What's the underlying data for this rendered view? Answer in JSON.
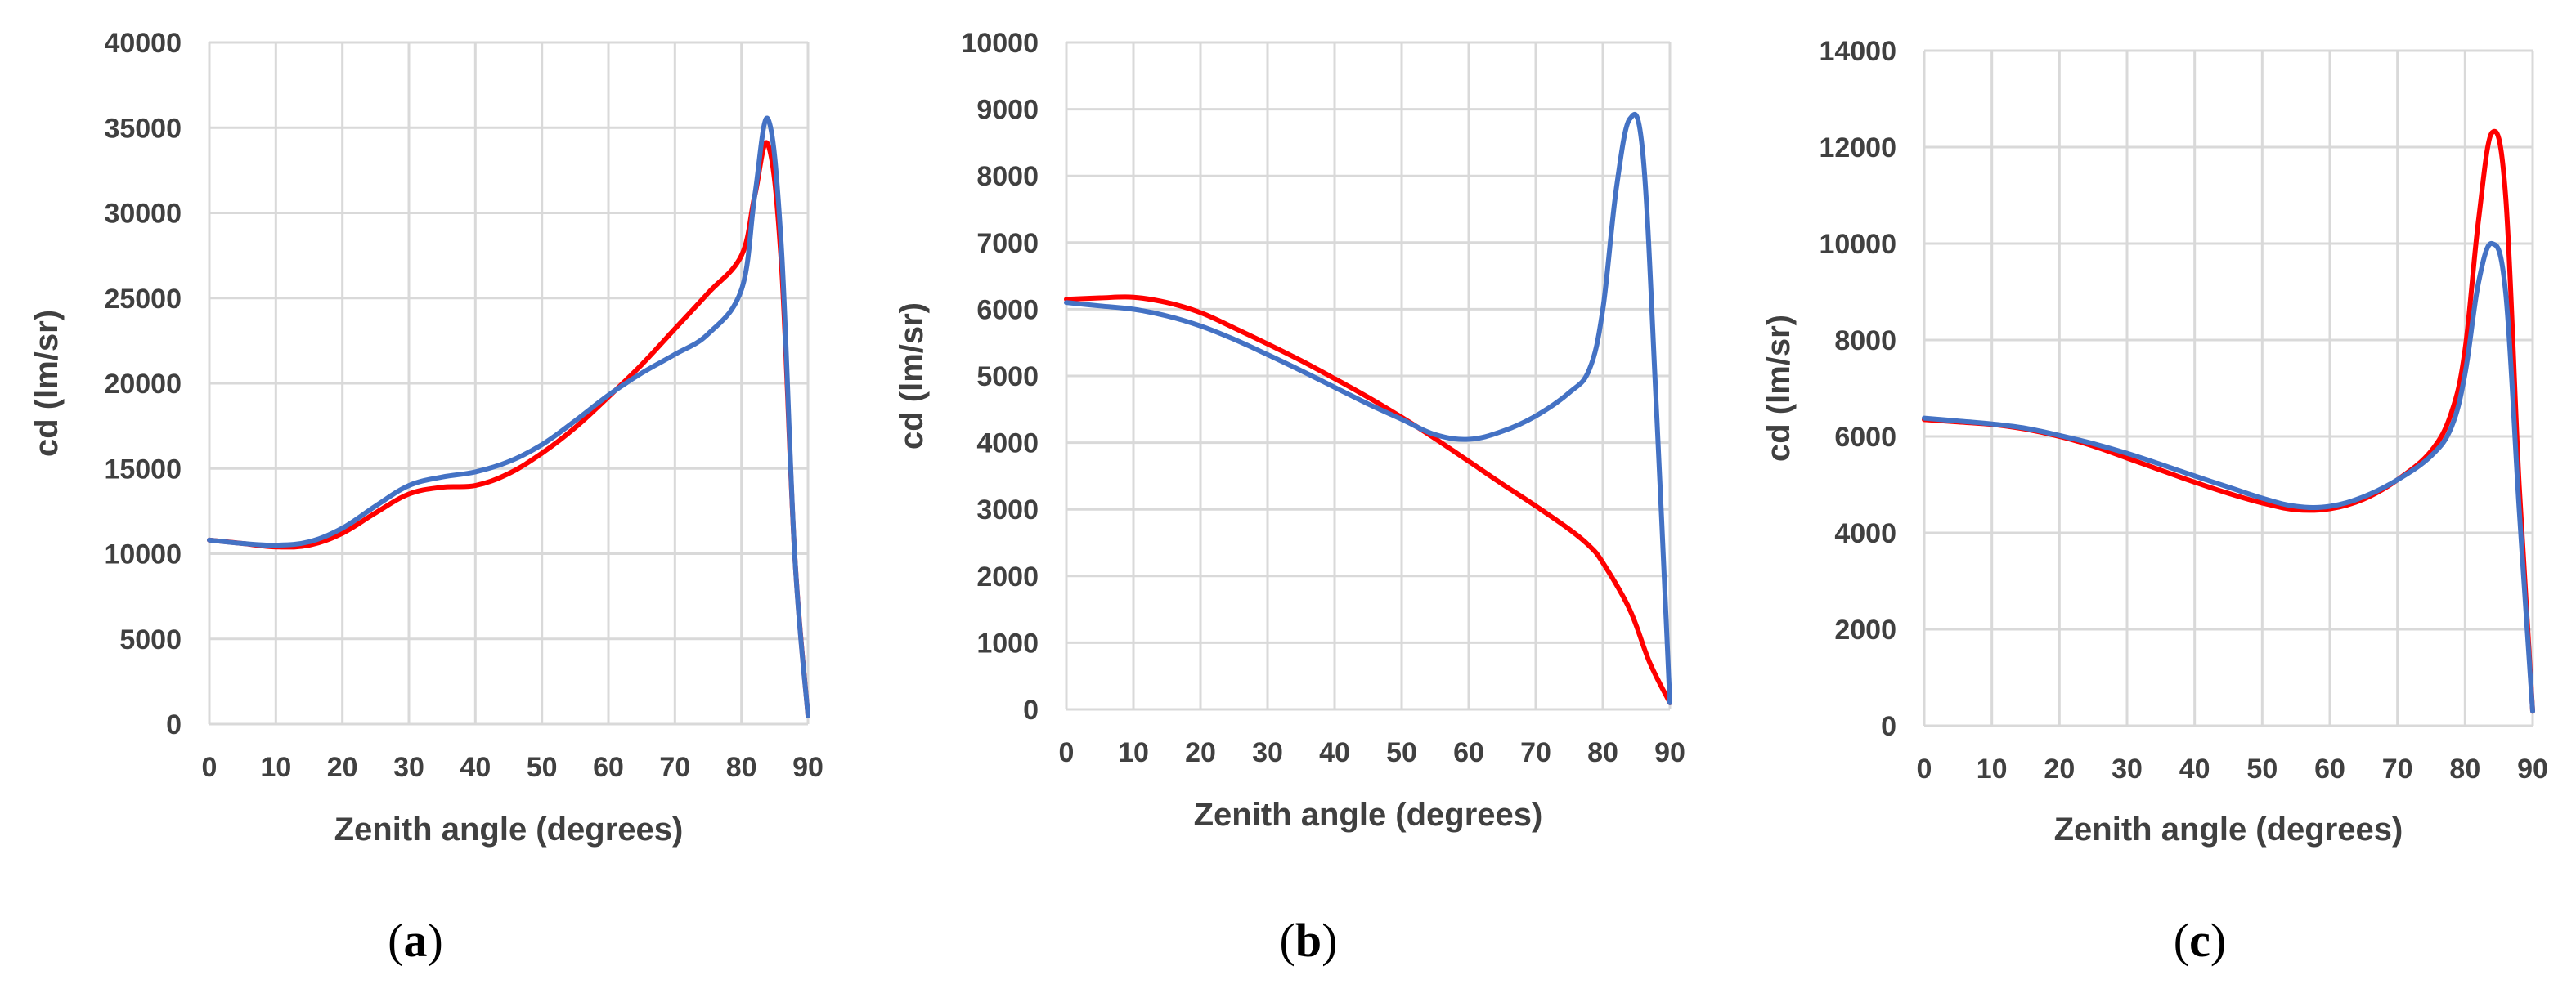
{
  "colors": {
    "series_red": "#ff0000",
    "series_blue": "#4472c4"
  },
  "chart_data": [
    {
      "type": "line",
      "panel": "a",
      "panel_label": "(a)",
      "xlabel": "Zenith angle (degrees)",
      "ylabel": "cd (lm/sr)",
      "xlim": [
        0,
        90
      ],
      "ylim": [
        0,
        40000
      ],
      "xticks": [
        0,
        10,
        20,
        30,
        40,
        50,
        60,
        70,
        80,
        90
      ],
      "yticks": [
        0,
        5000,
        10000,
        15000,
        20000,
        25000,
        30000,
        35000,
        40000
      ],
      "grid": true,
      "series": [
        {
          "name": "red",
          "color": "#ff0000",
          "x": [
            0,
            5,
            10,
            15,
            20,
            25,
            30,
            35,
            40,
            45,
            50,
            55,
            60,
            65,
            70,
            75,
            80,
            82,
            84,
            86,
            88,
            90
          ],
          "y": [
            10800,
            10600,
            10400,
            10500,
            11200,
            12400,
            13500,
            13900,
            14000,
            14700,
            15900,
            17400,
            19200,
            21100,
            23200,
            25300,
            27500,
            31000,
            34000,
            27000,
            10000,
            500
          ]
        },
        {
          "name": "blue",
          "color": "#4472c4",
          "x": [
            0,
            5,
            10,
            15,
            20,
            25,
            30,
            35,
            40,
            45,
            50,
            55,
            60,
            65,
            70,
            75,
            80,
            82,
            84,
            86,
            88,
            90
          ],
          "y": [
            10800,
            10600,
            10500,
            10700,
            11500,
            12800,
            14000,
            14500,
            14800,
            15400,
            16400,
            17800,
            19300,
            20600,
            21700,
            22900,
            25500,
            31000,
            35500,
            28000,
            10000,
            500
          ]
        }
      ]
    },
    {
      "type": "line",
      "panel": "b",
      "panel_label": "(b)",
      "xlabel": "Zenith angle (degrees)",
      "ylabel": "cd (lm/sr)",
      "xlim": [
        0,
        90
      ],
      "ylim": [
        0,
        10000
      ],
      "xticks": [
        0,
        10,
        20,
        30,
        40,
        50,
        60,
        70,
        80,
        90
      ],
      "yticks": [
        0,
        1000,
        2000,
        3000,
        4000,
        5000,
        6000,
        7000,
        8000,
        9000,
        10000
      ],
      "grid": true,
      "series": [
        {
          "name": "red",
          "color": "#ff0000",
          "x": [
            0,
            5,
            10,
            15,
            20,
            25,
            30,
            35,
            40,
            45,
            50,
            55,
            60,
            65,
            70,
            75,
            78,
            80,
            84,
            87,
            90
          ],
          "y": [
            6150,
            6170,
            6180,
            6100,
            5950,
            5720,
            5480,
            5230,
            4960,
            4680,
            4380,
            4060,
            3720,
            3380,
            3050,
            2700,
            2450,
            2200,
            1500,
            700,
            100
          ]
        },
        {
          "name": "blue",
          "color": "#4472c4",
          "x": [
            0,
            5,
            10,
            15,
            20,
            25,
            30,
            35,
            40,
            45,
            50,
            55,
            60,
            65,
            70,
            75,
            78,
            80,
            82,
            84,
            86,
            88,
            90
          ],
          "y": [
            6100,
            6050,
            6000,
            5900,
            5750,
            5550,
            5320,
            5080,
            4830,
            4580,
            4350,
            4120,
            4050,
            4170,
            4400,
            4750,
            5100,
            6000,
            7800,
            8850,
            8300,
            4500,
            100
          ]
        }
      ]
    },
    {
      "type": "line",
      "panel": "c",
      "panel_label": "(c)",
      "xlabel": "Zenith angle (degrees)",
      "ylabel": "cd (lm/sr)",
      "xlim": [
        0,
        90
      ],
      "ylim": [
        0,
        14000
      ],
      "xticks": [
        0,
        10,
        20,
        30,
        40,
        50,
        60,
        70,
        80,
        90
      ],
      "yticks": [
        0,
        2000,
        4000,
        6000,
        8000,
        10000,
        12000,
        14000
      ],
      "grid": true,
      "series": [
        {
          "name": "red",
          "color": "#ff0000",
          "x": [
            0,
            5,
            10,
            15,
            20,
            25,
            30,
            35,
            40,
            45,
            50,
            55,
            60,
            65,
            70,
            75,
            78,
            80,
            82,
            84,
            86,
            88,
            90
          ],
          "y": [
            6350,
            6300,
            6250,
            6150,
            6000,
            5800,
            5550,
            5300,
            5050,
            4820,
            4620,
            4480,
            4500,
            4700,
            5100,
            5700,
            6500,
            7800,
            10500,
            12300,
            11000,
            5000,
            300
          ]
        },
        {
          "name": "blue",
          "color": "#4472c4",
          "x": [
            0,
            5,
            10,
            15,
            20,
            25,
            30,
            35,
            40,
            45,
            50,
            55,
            60,
            65,
            70,
            75,
            78,
            80,
            82,
            84,
            86,
            88,
            90
          ],
          "y": [
            6380,
            6320,
            6260,
            6170,
            6020,
            5850,
            5650,
            5420,
            5180,
            4950,
            4720,
            4550,
            4550,
            4750,
            5100,
            5600,
            6200,
            7300,
            9200,
            10000,
            9000,
            4500,
            300
          ]
        }
      ]
    }
  ]
}
